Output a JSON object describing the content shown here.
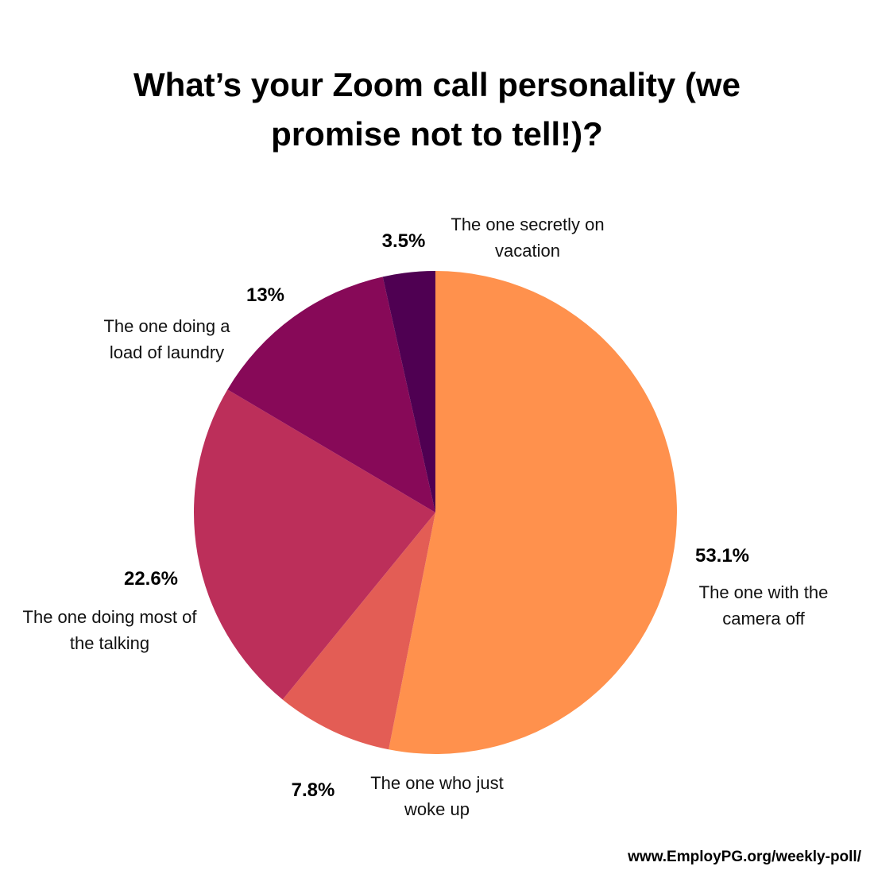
{
  "chart_data": {
    "type": "pie",
    "title": "What’s your Zoom call personality (we promise not to tell!)?",
    "categories": [
      "The one with the camera off",
      "The one who just woke up",
      "The one doing most of the talking",
      "The one doing a load of laundry",
      "The one secretly on vacation"
    ],
    "values": [
      53.1,
      7.8,
      22.6,
      13,
      3.5
    ],
    "value_labels": [
      "53.1%",
      "7.8%",
      "22.6%",
      "13%",
      "3.5%"
    ],
    "colors": [
      "#ff914d",
      "#e35d55",
      "#bc2f5a",
      "#870958",
      "#4f0052"
    ],
    "source": "www.EmployPG.org/weekly-poll/"
  }
}
